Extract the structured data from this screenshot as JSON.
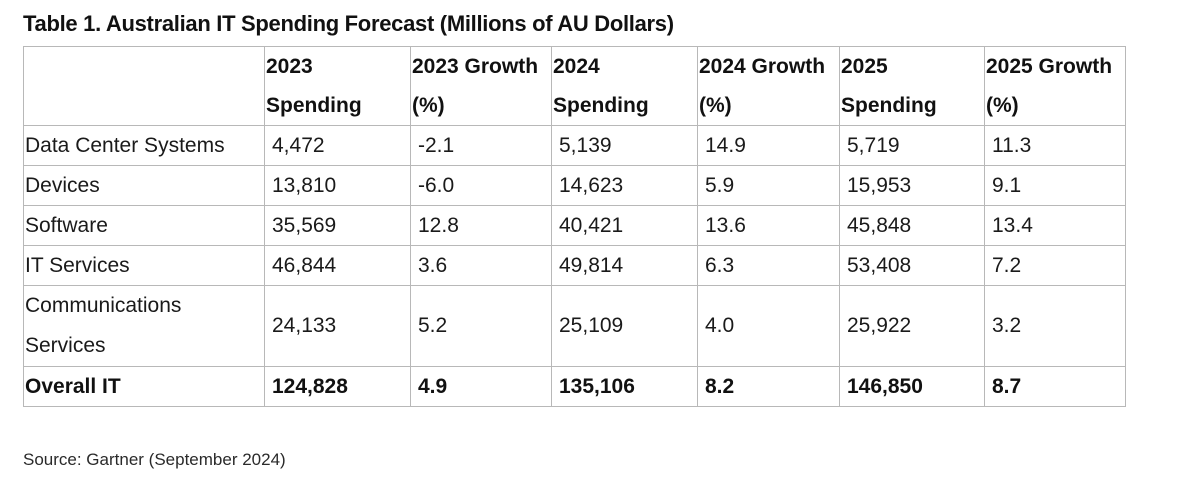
{
  "chart_data": {
    "type": "table",
    "title": "Table 1. Australian IT Spending Forecast (Millions of AU Dollars)",
    "columns": [
      "",
      "2023 Spending",
      "2023 Growth (%)",
      "2024 Spending",
      "2024 Growth (%)",
      "2025 Spending",
      "2025 Growth (%)"
    ],
    "rows": [
      [
        "Data Center Systems",
        "4,472",
        "-2.1",
        "5,139",
        "14.9",
        "5,719",
        "11.3"
      ],
      [
        "Devices",
        "13,810",
        "-6.0",
        "14,623",
        "5.9",
        "15,953",
        "9.1"
      ],
      [
        "Software",
        "35,569",
        "12.8",
        "40,421",
        "13.6",
        "45,848",
        "13.4"
      ],
      [
        "IT Services",
        "46,844",
        "3.6",
        "49,814",
        "6.3",
        "53,408",
        "7.2"
      ],
      [
        "Communications Services",
        "24,133",
        "5.2",
        "25,109",
        "4.0",
        "25,922",
        "3.2"
      ]
    ],
    "total_row": [
      "Overall IT",
      "124,828",
      "4.9",
      "135,106",
      "8.2",
      "146,850",
      "8.7"
    ],
    "source": "Source: Gartner (September 2024)"
  }
}
